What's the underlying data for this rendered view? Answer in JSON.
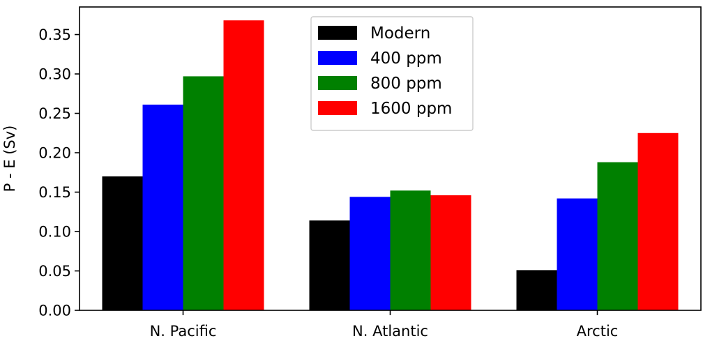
{
  "chart_data": {
    "type": "bar",
    "categories": [
      "N. Pacific",
      "N. Atlantic",
      "Arctic"
    ],
    "series": [
      {
        "name": "Modern",
        "color": "#000000",
        "values": [
          0.17,
          0.114,
          0.051
        ]
      },
      {
        "name": "400 ppm",
        "color": "#0000ff",
        "values": [
          0.261,
          0.144,
          0.142
        ]
      },
      {
        "name": "800 ppm",
        "color": "#008000",
        "values": [
          0.297,
          0.152,
          0.188
        ]
      },
      {
        "name": "1600 ppm",
        "color": "#ff0000",
        "values": [
          0.368,
          0.146,
          0.225
        ]
      }
    ],
    "ylabel": "P - E (Sv)",
    "ylim": [
      0,
      0.385
    ],
    "yticks": [
      "0.00",
      "0.05",
      "0.10",
      "0.15",
      "0.20",
      "0.25",
      "0.30",
      "0.35"
    ],
    "grid": false,
    "legend_position": "top-center"
  }
}
